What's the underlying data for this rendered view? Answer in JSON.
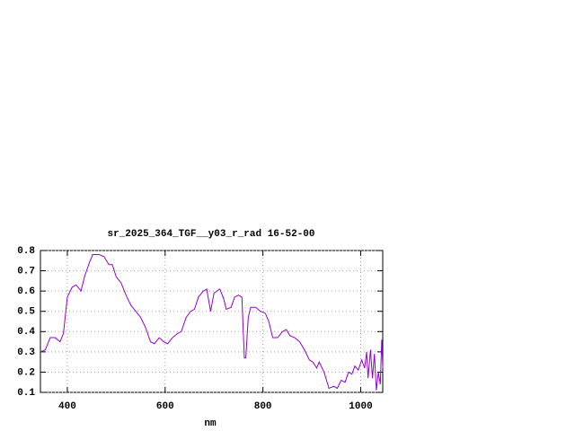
{
  "chart_data": {
    "type": "line",
    "title": "sr_2025_364_TGF__y03_r_rad 16-52-00",
    "xlabel": "nm",
    "x": [
      345,
      355,
      365,
      375,
      385,
      392,
      400,
      410,
      418,
      428,
      435,
      445,
      452,
      465,
      475,
      485,
      492,
      500,
      510,
      520,
      530,
      540,
      550,
      560,
      570,
      578,
      588,
      597,
      605,
      615,
      625,
      633,
      643,
      652,
      660,
      668,
      678,
      685,
      693,
      700,
      712,
      720,
      725,
      735,
      742,
      750,
      757,
      762,
      765,
      770,
      775,
      785,
      795,
      805,
      812,
      820,
      830,
      840,
      848,
      855,
      865,
      875,
      885,
      895,
      902,
      910,
      915,
      925,
      935,
      945,
      952,
      960,
      968,
      975,
      982,
      988,
      995,
      1002,
      1008,
      1012,
      1015,
      1020,
      1024,
      1028,
      1032,
      1036,
      1040,
      1043,
      1045
    ],
    "series": [
      {
        "name": null,
        "color": "#9400d3",
        "values": [
          0.3,
          0.31,
          0.37,
          0.37,
          0.35,
          0.39,
          0.57,
          0.62,
          0.63,
          0.6,
          0.67,
          0.74,
          0.78,
          0.78,
          0.77,
          0.73,
          0.73,
          0.67,
          0.64,
          0.58,
          0.53,
          0.5,
          0.47,
          0.42,
          0.35,
          0.34,
          0.37,
          0.35,
          0.34,
          0.37,
          0.39,
          0.4,
          0.47,
          0.5,
          0.51,
          0.57,
          0.6,
          0.61,
          0.5,
          0.59,
          0.61,
          0.56,
          0.51,
          0.52,
          0.57,
          0.58,
          0.57,
          0.27,
          0.27,
          0.47,
          0.52,
          0.52,
          0.5,
          0.49,
          0.45,
          0.37,
          0.37,
          0.4,
          0.41,
          0.38,
          0.37,
          0.35,
          0.31,
          0.26,
          0.25,
          0.22,
          0.25,
          0.2,
          0.12,
          0.13,
          0.12,
          0.16,
          0.15,
          0.2,
          0.19,
          0.23,
          0.21,
          0.26,
          0.22,
          0.3,
          0.17,
          0.31,
          0.17,
          0.29,
          0.11,
          0.2,
          0.14,
          0.36,
          0.22
        ]
      }
    ],
    "xlim": [
      345,
      1045
    ],
    "ylim": [
      0.1,
      0.8
    ],
    "xticks": [
      400,
      600,
      800,
      1000
    ],
    "yticks": [
      0.1,
      0.2,
      0.3,
      0.4,
      0.5,
      0.6,
      0.7,
      0.8
    ],
    "grid": true
  }
}
